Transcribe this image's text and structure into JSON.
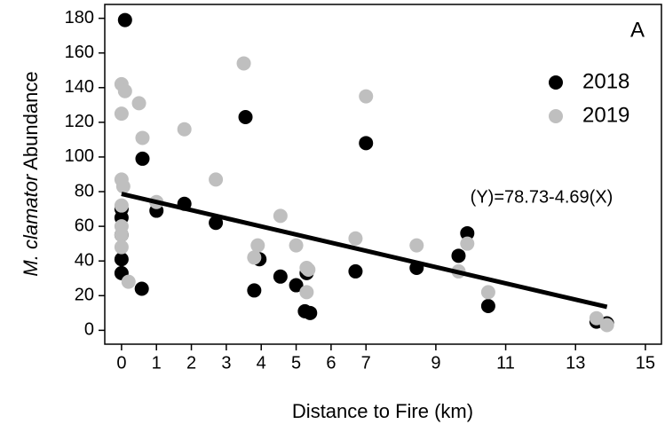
{
  "chart_data": {
    "type": "scatter",
    "panel_label": "A",
    "xlabel": "Distance to Fire (km)",
    "ylabel_italic": "M. clamator",
    "ylabel_rest": "Abundance",
    "annotation": "(Y)=78.73-4.69(X)",
    "xlim": [
      -0.48,
      15.46
    ],
    "ylim": [
      -8,
      188
    ],
    "xticks": [
      0,
      1,
      2,
      3,
      4,
      5,
      6,
      7,
      9,
      11,
      13,
      15
    ],
    "yticks": [
      0,
      20,
      40,
      60,
      80,
      100,
      120,
      140,
      160,
      180
    ],
    "legend": "upper right",
    "series": [
      {
        "name": "2018",
        "color": "#000000",
        "x": [
          0.1,
          0,
          0,
          0,
          0,
          0,
          0.58,
          0.6,
          1.0,
          1.8,
          2.7,
          3.55,
          3.8,
          3.95,
          4.55,
          5.0,
          5.3,
          5.25,
          5.4,
          6.7,
          7.0,
          8.45,
          9.65,
          9.9,
          10.5,
          13.6,
          13.9
        ],
        "y": [
          179,
          33,
          41,
          55,
          65,
          70,
          24,
          99,
          69,
          73,
          62,
          123,
          23,
          41,
          31,
          26,
          33,
          11,
          10,
          34,
          108,
          36,
          43,
          56,
          14,
          5,
          4
        ]
      },
      {
        "name": "2019",
        "color": "#bfbfbf",
        "x": [
          0,
          0.1,
          0,
          0.5,
          0.6,
          0,
          0.05,
          0,
          0,
          0,
          0,
          0.2,
          1.0,
          1.8,
          2.7,
          3.5,
          3.8,
          3.9,
          4.55,
          5.0,
          5.3,
          5.3,
          5.35,
          6.7,
          7.0,
          8.45,
          9.65,
          9.9,
          10.5,
          13.6,
          13.9
        ],
        "y": [
          142,
          138,
          125,
          131,
          111,
          87,
          83,
          72,
          60,
          55,
          48,
          28,
          74,
          116,
          87,
          154,
          42,
          49,
          66,
          49,
          36,
          22,
          35,
          53,
          135,
          49,
          34,
          50,
          22,
          7,
          3
        ]
      }
    ],
    "fit_line": {
      "color": "#000000",
      "x": [
        0,
        13.9
      ],
      "y": [
        78.7,
        13.5
      ]
    }
  }
}
